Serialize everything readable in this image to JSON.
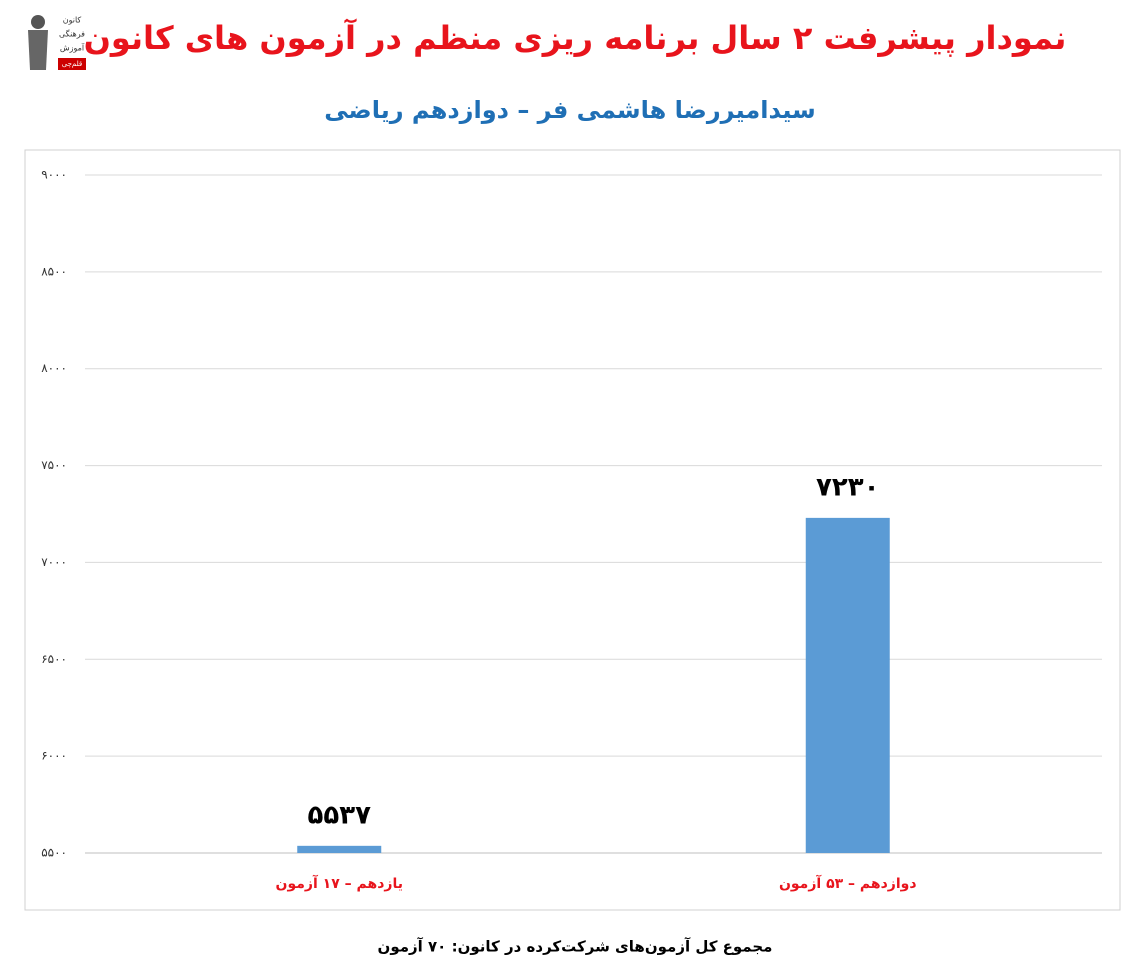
{
  "chart_data": {
    "type": "bar",
    "title": "نمودار پیشرفت ۲ سال برنامه ریزی منظم در آزمون های کانون",
    "subtitle": "سیدامیررضا هاشمی فر – دوازدهم ریاضی",
    "categories": [
      "یازدهم – ۱۷ آزمون",
      "دوازدهم – ۵۳ آزمون"
    ],
    "values": [
      5537,
      7230
    ],
    "value_labels": [
      "۵۵۳۷",
      "۷۲۳۰"
    ],
    "color": "#5b9bd5",
    "ylim": [
      5500,
      9000
    ],
    "yticks": [
      {
        "value": 5500,
        "label": "۵۵۰۰"
      },
      {
        "value": 6000,
        "label": "۶۰۰۰"
      },
      {
        "value": 6500,
        "label": "۶۵۰۰"
      },
      {
        "value": 7000,
        "label": "۷۰۰۰"
      },
      {
        "value": 7500,
        "label": "۷۵۰۰"
      },
      {
        "value": 8000,
        "label": "۸۰۰۰"
      },
      {
        "value": 8500,
        "label": "۸۵۰۰"
      },
      {
        "value": 9000,
        "label": "۹۰۰۰"
      }
    ],
    "grid": true,
    "footnote": "مجموع کل آزمون‌های شرکت‌کرده در کانون: ۷۰ آزمون"
  },
  "logo": {
    "lines": [
      "کانون",
      "فرهنگی",
      "آموزش",
      "قلم‌چی"
    ]
  }
}
